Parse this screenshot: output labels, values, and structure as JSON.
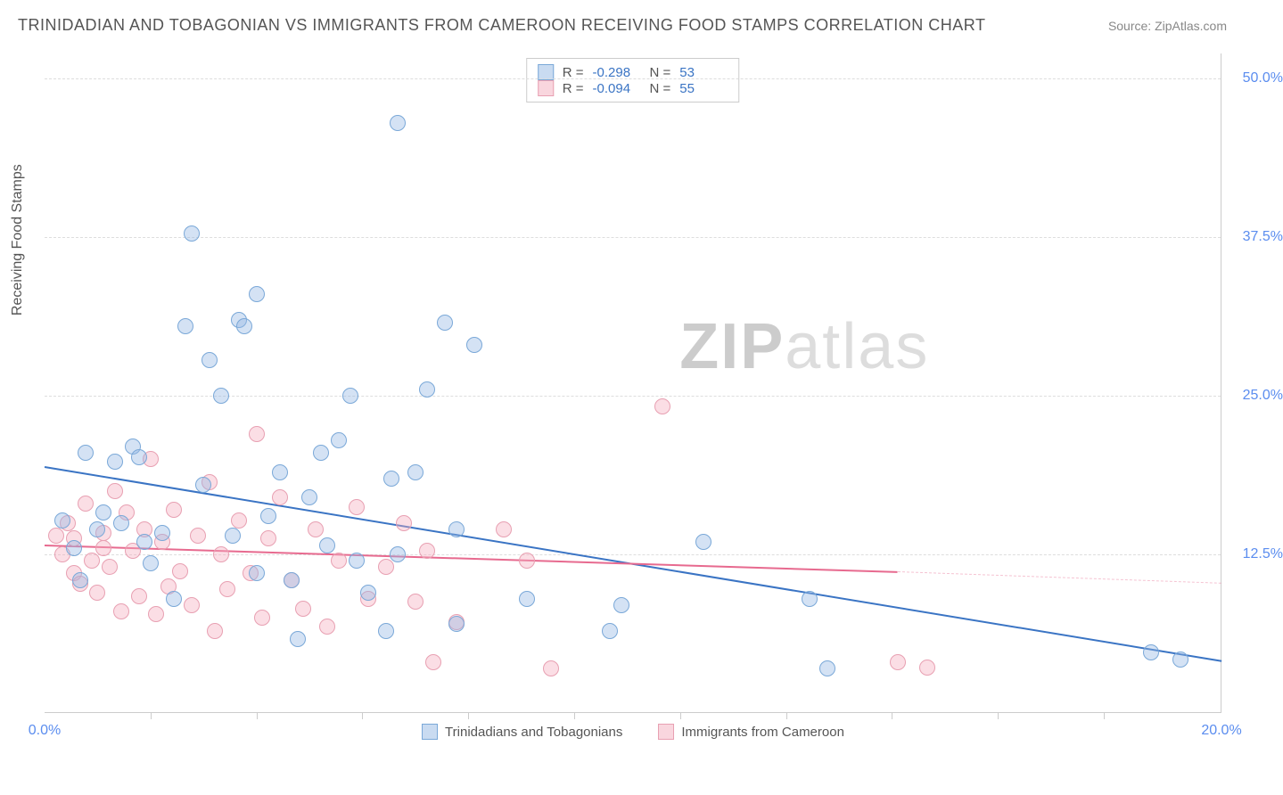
{
  "header": {
    "title": "TRINIDADIAN AND TOBAGONIAN VS IMMIGRANTS FROM CAMEROON RECEIVING FOOD STAMPS CORRELATION CHART",
    "source": "Source: ZipAtlas.com"
  },
  "ylabel": "Receiving Food Stamps",
  "watermark": {
    "bold": "ZIP",
    "rest": "atlas"
  },
  "axes": {
    "xlim": [
      0,
      20
    ],
    "ylim": [
      0,
      52
    ],
    "ygrid": [
      12.5,
      25.0,
      37.5,
      50.0
    ],
    "ylabels": [
      "12.5%",
      "25.0%",
      "37.5%",
      "50.0%"
    ],
    "xticks": [
      0,
      20
    ],
    "xlabels": [
      "0.0%",
      "20.0%"
    ],
    "xminor": [
      1.8,
      3.6,
      5.4,
      7.2,
      9.0,
      10.8,
      12.6,
      14.4,
      16.2,
      18.0
    ]
  },
  "series": {
    "blue": {
      "label": "Trinidadians and Tobagonians",
      "color_fill": "rgba(147,183,227,0.4)",
      "color_stroke": "#7aa8d8",
      "trend": {
        "x1": 0,
        "y1": 19.5,
        "x2": 20,
        "y2": 4.2,
        "color": "#3a74c4"
      },
      "R": "-0.298",
      "N": "53",
      "points": [
        [
          0.3,
          15.2
        ],
        [
          0.5,
          13.0
        ],
        [
          0.6,
          10.5
        ],
        [
          0.7,
          20.5
        ],
        [
          0.9,
          14.5
        ],
        [
          1.0,
          15.8
        ],
        [
          1.2,
          19.8
        ],
        [
          1.3,
          15.0
        ],
        [
          1.5,
          21.0
        ],
        [
          1.6,
          20.2
        ],
        [
          1.7,
          13.5
        ],
        [
          1.8,
          11.8
        ],
        [
          2.0,
          14.2
        ],
        [
          2.2,
          9.0
        ],
        [
          2.4,
          30.5
        ],
        [
          2.5,
          37.8
        ],
        [
          2.7,
          18.0
        ],
        [
          2.8,
          27.8
        ],
        [
          3.0,
          25.0
        ],
        [
          3.2,
          14.0
        ],
        [
          3.3,
          31.0
        ],
        [
          3.4,
          30.5
        ],
        [
          3.6,
          33.0
        ],
        [
          3.6,
          11.0
        ],
        [
          3.8,
          15.5
        ],
        [
          4.0,
          19.0
        ],
        [
          4.2,
          10.5
        ],
        [
          4.3,
          5.8
        ],
        [
          4.5,
          17.0
        ],
        [
          4.7,
          20.5
        ],
        [
          4.8,
          13.2
        ],
        [
          5.0,
          21.5
        ],
        [
          5.2,
          25.0
        ],
        [
          5.3,
          12.0
        ],
        [
          5.5,
          9.5
        ],
        [
          5.8,
          6.5
        ],
        [
          5.9,
          18.5
        ],
        [
          6.0,
          12.5
        ],
        [
          6.0,
          46.5
        ],
        [
          6.3,
          19.0
        ],
        [
          6.5,
          25.5
        ],
        [
          6.8,
          30.8
        ],
        [
          7.0,
          7.0
        ],
        [
          7.0,
          14.5
        ],
        [
          7.3,
          29.0
        ],
        [
          8.2,
          9.0
        ],
        [
          9.6,
          6.5
        ],
        [
          9.8,
          8.5
        ],
        [
          11.2,
          13.5
        ],
        [
          13.0,
          9.0
        ],
        [
          13.3,
          3.5
        ],
        [
          18.8,
          4.8
        ],
        [
          19.3,
          4.2
        ]
      ]
    },
    "pink": {
      "label": "Immigrants from Cameroon",
      "color_fill": "rgba(244,173,189,0.4)",
      "color_stroke": "#e8a0b2",
      "trend_solid": {
        "x1": 0,
        "y1": 13.3,
        "x2": 14.5,
        "y2": 11.2,
        "color": "#e76a8f"
      },
      "trend_dash": {
        "x1": 14.5,
        "y1": 11.2,
        "x2": 20,
        "y2": 10.3
      },
      "R": "-0.094",
      "N": "55",
      "points": [
        [
          0.2,
          14.0
        ],
        [
          0.3,
          12.5
        ],
        [
          0.4,
          15.0
        ],
        [
          0.5,
          11.0
        ],
        [
          0.5,
          13.8
        ],
        [
          0.6,
          10.2
        ],
        [
          0.7,
          16.5
        ],
        [
          0.8,
          12.0
        ],
        [
          0.9,
          9.5
        ],
        [
          1.0,
          14.2
        ],
        [
          1.0,
          13.0
        ],
        [
          1.1,
          11.5
        ],
        [
          1.2,
          17.5
        ],
        [
          1.3,
          8.0
        ],
        [
          1.4,
          15.8
        ],
        [
          1.5,
          12.8
        ],
        [
          1.6,
          9.2
        ],
        [
          1.7,
          14.5
        ],
        [
          1.8,
          20.0
        ],
        [
          1.9,
          7.8
        ],
        [
          2.0,
          13.5
        ],
        [
          2.1,
          10.0
        ],
        [
          2.2,
          16.0
        ],
        [
          2.3,
          11.2
        ],
        [
          2.5,
          8.5
        ],
        [
          2.6,
          14.0
        ],
        [
          2.8,
          18.2
        ],
        [
          2.9,
          6.5
        ],
        [
          3.0,
          12.5
        ],
        [
          3.1,
          9.8
        ],
        [
          3.3,
          15.2
        ],
        [
          3.5,
          11.0
        ],
        [
          3.6,
          22.0
        ],
        [
          3.7,
          7.5
        ],
        [
          3.8,
          13.8
        ],
        [
          4.0,
          17.0
        ],
        [
          4.2,
          10.5
        ],
        [
          4.4,
          8.2
        ],
        [
          4.6,
          14.5
        ],
        [
          4.8,
          6.8
        ],
        [
          5.0,
          12.0
        ],
        [
          5.3,
          16.2
        ],
        [
          5.5,
          9.0
        ],
        [
          5.8,
          11.5
        ],
        [
          6.1,
          15.0
        ],
        [
          6.3,
          8.8
        ],
        [
          6.5,
          12.8
        ],
        [
          6.6,
          4.0
        ],
        [
          7.0,
          7.2
        ],
        [
          7.8,
          14.5
        ],
        [
          8.2,
          12.0
        ],
        [
          8.6,
          3.5
        ],
        [
          10.5,
          24.2
        ],
        [
          14.5,
          4.0
        ],
        [
          15.0,
          3.6
        ]
      ]
    }
  },
  "legend": {
    "blue": "Trinidadians and Tobagonians",
    "pink": "Immigrants from Cameroon"
  }
}
